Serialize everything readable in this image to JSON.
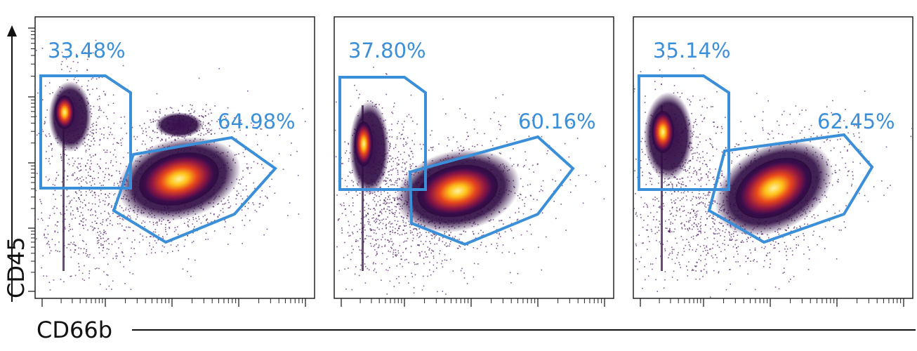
{
  "chart_data": {
    "type": "scatter",
    "xlabel": "CD66b",
    "ylabel": "CD45",
    "x_scale": "log",
    "y_scale": "log",
    "grid": false,
    "gate_color": "#3b8fd9",
    "panels": [
      {
        "gates": [
          {
            "name": "upper-left",
            "percent_label": "33.48%"
          },
          {
            "name": "right",
            "percent_label": "64.98%"
          }
        ]
      },
      {
        "gates": [
          {
            "name": "upper-left",
            "percent_label": "37.80%"
          },
          {
            "name": "right",
            "percent_label": "60.16%"
          }
        ]
      },
      {
        "gates": [
          {
            "name": "upper-left",
            "percent_label": "35.14%"
          },
          {
            "name": "right",
            "percent_label": "62.45%"
          }
        ]
      }
    ]
  }
}
